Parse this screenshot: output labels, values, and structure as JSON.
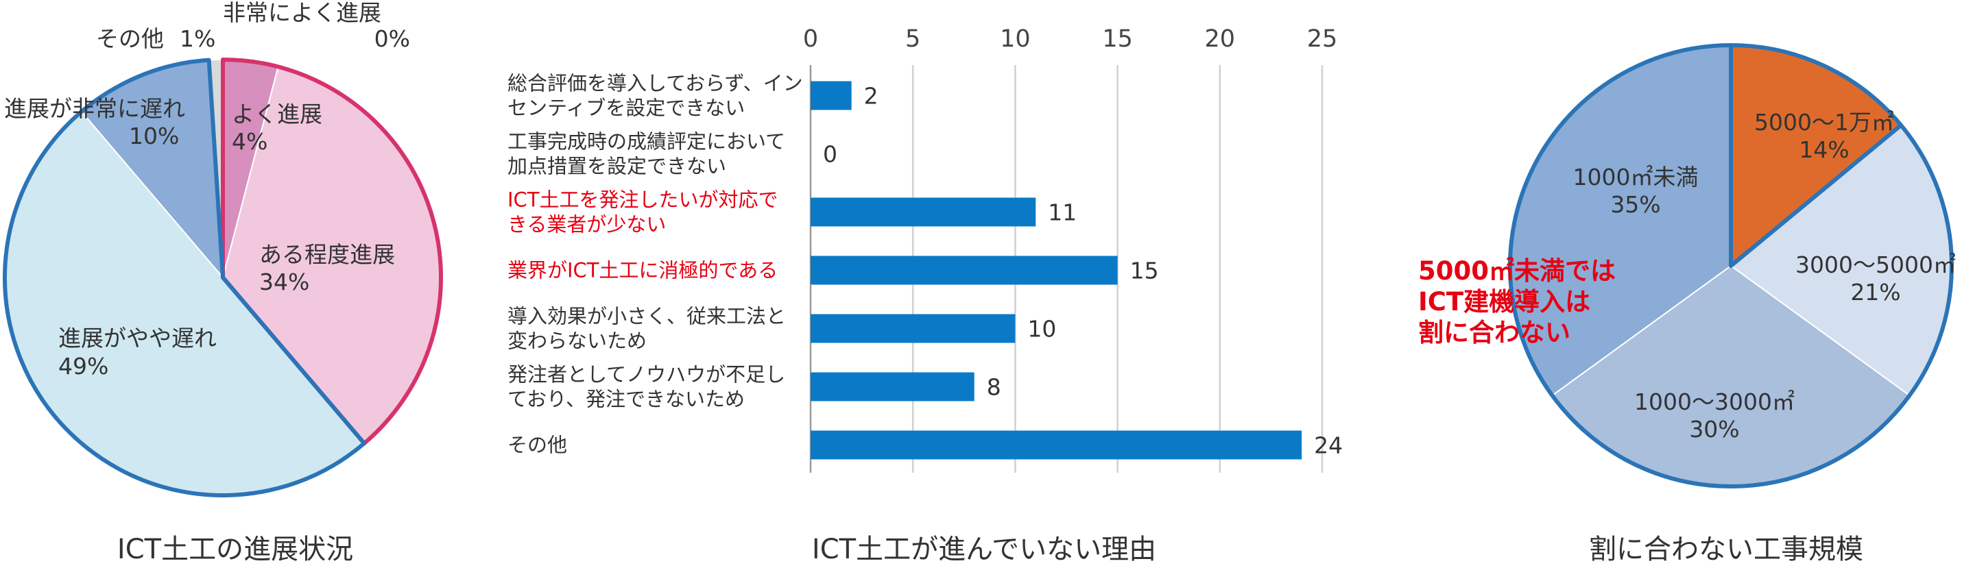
{
  "chart_data": [
    {
      "type": "pie",
      "title": "ICT土工の進展状況",
      "slices": [
        {
          "label": "非常によく進展",
          "value": 0,
          "value_label": "0%",
          "color": "#c7689e"
        },
        {
          "label": "よく進展",
          "value": 4,
          "value_label": "4%",
          "color": "#d78fbd"
        },
        {
          "label": "ある程度進展",
          "value": 34,
          "value_label": "34%",
          "color": "#f2c8df"
        },
        {
          "label": "進展がやや遅れ",
          "value": 49,
          "value_label": "49%",
          "color": "#d0e8f1"
        },
        {
          "label": "進展が非常に遅れ",
          "value": 10,
          "value_label": "10%",
          "color": "#8aacd6"
        },
        {
          "label": "その他",
          "value": 1,
          "value_label": "1%",
          "color": "#d9d9d9"
        }
      ],
      "colors": {
        "positive_outline": "#d6336c",
        "negative_outline": "#2b74b7"
      }
    },
    {
      "type": "bar",
      "orientation": "horizontal",
      "title": "ICT土工が進んでいない理由",
      "categories": [
        {
          "lines": [
            "総合評価を導入しておらず、イン",
            "センティブを設定できない"
          ],
          "highlight": false
        },
        {
          "lines": [
            "工事完成時の成績評定において",
            "加点措置を設定できない"
          ],
          "highlight": false
        },
        {
          "lines": [
            "ICT土工を発注したいが対応で",
            "きる業者が少ない"
          ],
          "highlight": true
        },
        {
          "lines": [
            "業界がICT土工に消極的である"
          ],
          "highlight": true
        },
        {
          "lines": [
            "導入効果が小さく、従来工法と",
            "変わらないため"
          ],
          "highlight": false
        },
        {
          "lines": [
            "発注者としてノウハウが不足し",
            "ており、発注できないため"
          ],
          "highlight": false
        },
        {
          "lines": [
            "その他"
          ],
          "highlight": false
        }
      ],
      "values": [
        2,
        0,
        11,
        15,
        10,
        8,
        24
      ],
      "xlim": [
        0,
        25
      ],
      "xticks": [
        0,
        5,
        10,
        15,
        20,
        25
      ],
      "grid": true,
      "colors": {
        "bar": "#0a7ac6",
        "highlight_text": "#e60012"
      }
    },
    {
      "type": "pie",
      "title": "割に合わない工事規模",
      "slices": [
        {
          "label": "5000～1万㎡",
          "value": 14,
          "value_label": "14%",
          "color": "#de6b2b"
        },
        {
          "label": "3000～5000㎡",
          "value": 21,
          "value_label": "21%",
          "color": "#d4e0ef"
        },
        {
          "label": "1000～3000㎡",
          "value": 30,
          "value_label": "30%",
          "color": "#a9bfdc"
        },
        {
          "label": "1000㎡未満",
          "value": 35,
          "value_label": "35%",
          "color": "#8aacd6"
        }
      ],
      "annotation": [
        "5000㎡未満では",
        "ICT建機導入は",
        "割に合わない"
      ],
      "colors": {
        "outline": "#2b74b7",
        "annotation": "#e60012"
      }
    }
  ]
}
